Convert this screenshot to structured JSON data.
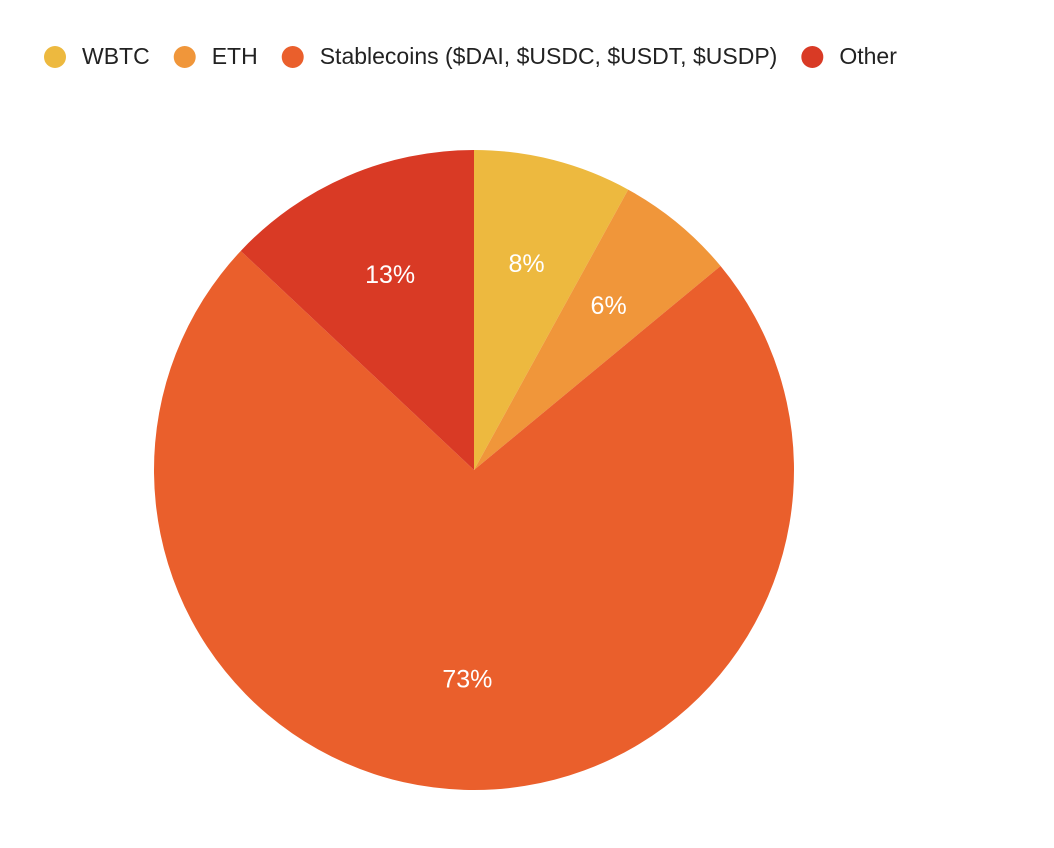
{
  "chart_data": {
    "type": "pie",
    "categories": [
      "WBTC",
      "ETH",
      "Stablecoins ($DAI, $USDC, $USDT, $USDP)",
      "Other"
    ],
    "values": [
      8,
      6,
      73,
      13
    ],
    "value_labels": [
      "8%",
      "6%",
      "73%",
      "13%"
    ],
    "colors": [
      "#edb93f",
      "#f0963a",
      "#ea5f2c",
      "#d93a25"
    ],
    "legend": "top-left"
  }
}
